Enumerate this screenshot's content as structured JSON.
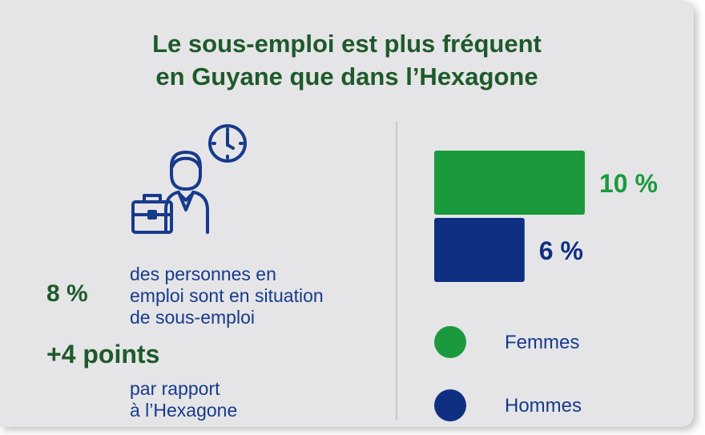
{
  "title": {
    "line1": "Le sous-emploi est plus fréquent",
    "line2": "en Guyane que dans l’Hexagone"
  },
  "illustration": {
    "icon": "worker-with-briefcase-and-clock-icon"
  },
  "stats": {
    "rate_value": "8 %",
    "rate_desc": [
      "des personnes en",
      "emploi sont en situation",
      "de sous-emploi"
    ],
    "diff_value": "+4 points",
    "diff_desc": [
      "par rapport",
      "à l’Hexagone"
    ]
  },
  "colors": {
    "title_green": "#1e5a2a",
    "femmes": "#1a9a3c",
    "hommes": "#0f2f80",
    "text_blue": "#173a8c",
    "background": "#e5e5e7"
  },
  "chart_data": {
    "type": "bar",
    "orientation": "horizontal",
    "categories": [
      "Femmes",
      "Hommes"
    ],
    "values": [
      10,
      6
    ],
    "value_labels": [
      "10 %",
      "6 %"
    ],
    "unit": "%",
    "xlim": [
      0,
      10
    ],
    "grid": false,
    "legend": {
      "placement": "bottom",
      "entries": [
        "Femmes",
        "Hommes"
      ]
    }
  }
}
